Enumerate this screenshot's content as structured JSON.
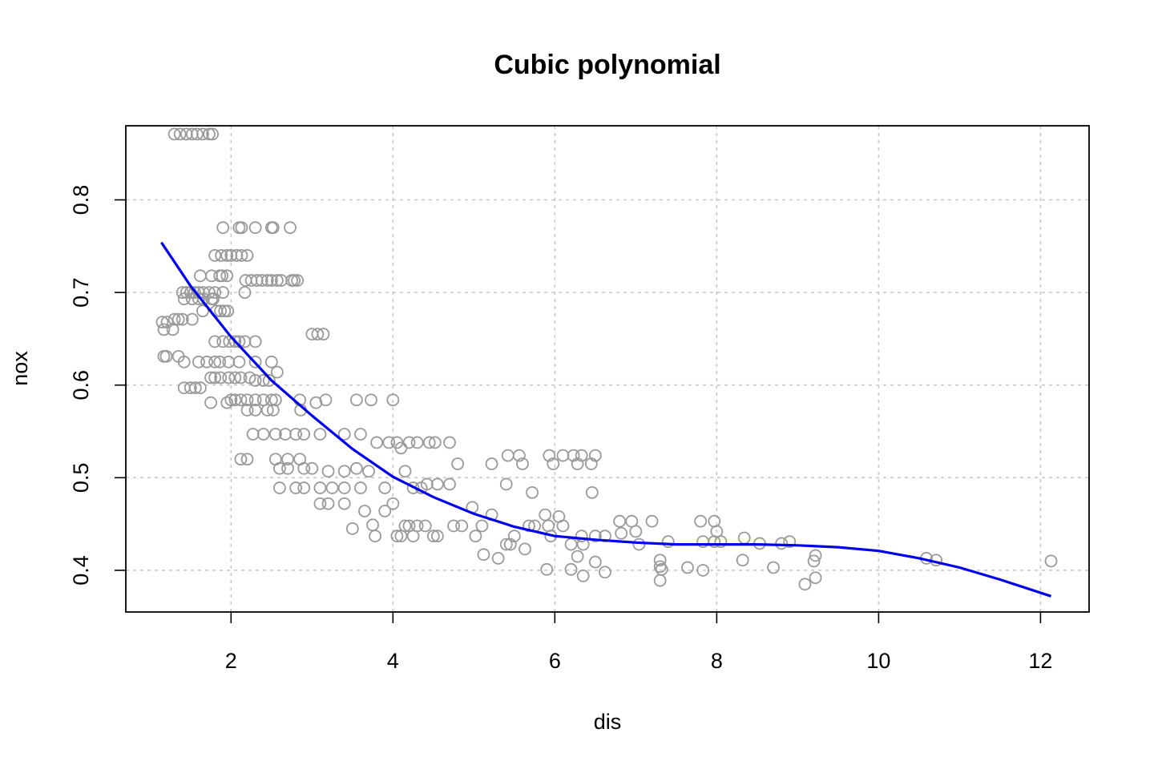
{
  "chart_data": {
    "type": "scatter",
    "title": "Cubic polynomial",
    "xlabel": "dis",
    "ylabel": "nox",
    "xlim": [
      0.7,
      12.6
    ],
    "ylim": [
      0.355,
      0.88
    ],
    "x_ticks": [
      2,
      4,
      6,
      8,
      10,
      12
    ],
    "y_ticks": [
      0.4,
      0.5,
      0.6,
      0.7,
      0.8
    ],
    "x_tick_labels": [
      "2",
      "4",
      "6",
      "8",
      "10",
      "12"
    ],
    "y_tick_labels": [
      "0.4",
      "0.5",
      "0.6",
      "0.7",
      "0.8"
    ],
    "grid": true,
    "colors": {
      "points": "#9a9a9a",
      "fit_line": "#0000ee",
      "grid": "#c8c8c8"
    },
    "points": [
      [
        1.3,
        0.871
      ],
      [
        1.37,
        0.871
      ],
      [
        1.45,
        0.871
      ],
      [
        1.52,
        0.871
      ],
      [
        1.58,
        0.871
      ],
      [
        1.65,
        0.871
      ],
      [
        1.73,
        0.871
      ],
      [
        1.77,
        0.871
      ],
      [
        1.9,
        0.77
      ],
      [
        2.1,
        0.77
      ],
      [
        2.13,
        0.77
      ],
      [
        2.3,
        0.77
      ],
      [
        2.5,
        0.77
      ],
      [
        2.52,
        0.77
      ],
      [
        2.73,
        0.77
      ],
      [
        1.8,
        0.74
      ],
      [
        1.88,
        0.74
      ],
      [
        1.95,
        0.74
      ],
      [
        2.0,
        0.74
      ],
      [
        2.07,
        0.74
      ],
      [
        2.13,
        0.74
      ],
      [
        2.2,
        0.74
      ],
      [
        2.18,
        0.713
      ],
      [
        2.25,
        0.713
      ],
      [
        2.32,
        0.713
      ],
      [
        2.38,
        0.713
      ],
      [
        2.45,
        0.713
      ],
      [
        2.5,
        0.713
      ],
      [
        2.57,
        0.713
      ],
      [
        2.62,
        0.713
      ],
      [
        2.75,
        0.713
      ],
      [
        2.78,
        0.713
      ],
      [
        2.82,
        0.713
      ],
      [
        1.62,
        0.718
      ],
      [
        1.76,
        0.718
      ],
      [
        1.86,
        0.718
      ],
      [
        1.89,
        0.718
      ],
      [
        1.95,
        0.718
      ],
      [
        1.4,
        0.7
      ],
      [
        1.45,
        0.7
      ],
      [
        1.5,
        0.7
      ],
      [
        1.55,
        0.7
      ],
      [
        1.6,
        0.7
      ],
      [
        1.66,
        0.7
      ],
      [
        1.73,
        0.7
      ],
      [
        1.8,
        0.7
      ],
      [
        1.9,
        0.7
      ],
      [
        2.17,
        0.7
      ],
      [
        1.42,
        0.693
      ],
      [
        1.52,
        0.693
      ],
      [
        1.6,
        0.693
      ],
      [
        1.66,
        0.693
      ],
      [
        1.76,
        0.693
      ],
      [
        1.78,
        0.693
      ],
      [
        1.65,
        0.68
      ],
      [
        1.82,
        0.68
      ],
      [
        1.87,
        0.68
      ],
      [
        1.92,
        0.68
      ],
      [
        1.96,
        0.68
      ],
      [
        1.15,
        0.668
      ],
      [
        1.3,
        0.671
      ],
      [
        1.35,
        0.671
      ],
      [
        1.4,
        0.671
      ],
      [
        1.52,
        0.671
      ],
      [
        1.21,
        0.668
      ],
      [
        1.28,
        0.66
      ],
      [
        1.17,
        0.66
      ],
      [
        3.0,
        0.655
      ],
      [
        3.07,
        0.655
      ],
      [
        3.14,
        0.655
      ],
      [
        1.8,
        0.647
      ],
      [
        1.9,
        0.647
      ],
      [
        1.98,
        0.647
      ],
      [
        2.05,
        0.647
      ],
      [
        2.1,
        0.647
      ],
      [
        2.17,
        0.647
      ],
      [
        2.3,
        0.647
      ],
      [
        1.17,
        0.631
      ],
      [
        1.2,
        0.631
      ],
      [
        1.35,
        0.631
      ],
      [
        1.42,
        0.625
      ],
      [
        1.6,
        0.625
      ],
      [
        1.7,
        0.625
      ],
      [
        1.8,
        0.625
      ],
      [
        1.86,
        0.625
      ],
      [
        1.97,
        0.625
      ],
      [
        2.1,
        0.625
      ],
      [
        2.3,
        0.625
      ],
      [
        2.5,
        0.625
      ],
      [
        2.57,
        0.614
      ],
      [
        1.75,
        0.608
      ],
      [
        1.8,
        0.608
      ],
      [
        1.87,
        0.608
      ],
      [
        1.97,
        0.608
      ],
      [
        2.05,
        0.608
      ],
      [
        2.12,
        0.608
      ],
      [
        2.23,
        0.608
      ],
      [
        2.3,
        0.605
      ],
      [
        2.4,
        0.605
      ],
      [
        2.47,
        0.605
      ],
      [
        1.42,
        0.597
      ],
      [
        1.5,
        0.597
      ],
      [
        1.56,
        0.597
      ],
      [
        1.62,
        0.597
      ],
      [
        1.75,
        0.581
      ],
      [
        1.95,
        0.581
      ],
      [
        2.0,
        0.584
      ],
      [
        2.05,
        0.584
      ],
      [
        2.12,
        0.584
      ],
      [
        2.2,
        0.584
      ],
      [
        2.3,
        0.584
      ],
      [
        2.4,
        0.584
      ],
      [
        2.5,
        0.584
      ],
      [
        2.55,
        0.584
      ],
      [
        2.85,
        0.584
      ],
      [
        3.05,
        0.581
      ],
      [
        3.17,
        0.584
      ],
      [
        3.55,
        0.584
      ],
      [
        3.73,
        0.584
      ],
      [
        4.0,
        0.584
      ],
      [
        2.2,
        0.573
      ],
      [
        2.3,
        0.573
      ],
      [
        2.45,
        0.573
      ],
      [
        2.52,
        0.573
      ],
      [
        2.86,
        0.573
      ],
      [
        2.27,
        0.547
      ],
      [
        2.4,
        0.547
      ],
      [
        2.55,
        0.547
      ],
      [
        2.67,
        0.547
      ],
      [
        2.8,
        0.547
      ],
      [
        2.9,
        0.547
      ],
      [
        3.1,
        0.547
      ],
      [
        3.4,
        0.547
      ],
      [
        3.6,
        0.547
      ],
      [
        2.55,
        0.52
      ],
      [
        2.7,
        0.52
      ],
      [
        2.85,
        0.52
      ],
      [
        2.12,
        0.52
      ],
      [
        2.2,
        0.52
      ],
      [
        2.6,
        0.51
      ],
      [
        2.7,
        0.51
      ],
      [
        2.9,
        0.51
      ],
      [
        3.0,
        0.51
      ],
      [
        3.2,
        0.507
      ],
      [
        3.4,
        0.507
      ],
      [
        3.55,
        0.51
      ],
      [
        3.7,
        0.507
      ],
      [
        4.15,
        0.507
      ],
      [
        2.6,
        0.489
      ],
      [
        2.8,
        0.489
      ],
      [
        2.9,
        0.489
      ],
      [
        3.1,
        0.489
      ],
      [
        3.25,
        0.489
      ],
      [
        3.4,
        0.489
      ],
      [
        3.6,
        0.489
      ],
      [
        3.9,
        0.489
      ],
      [
        4.25,
        0.489
      ],
      [
        4.35,
        0.489
      ],
      [
        3.1,
        0.472
      ],
      [
        3.2,
        0.472
      ],
      [
        3.4,
        0.472
      ],
      [
        3.5,
        0.445
      ],
      [
        3.65,
        0.464
      ],
      [
        3.75,
        0.449
      ],
      [
        3.78,
        0.437
      ],
      [
        3.9,
        0.464
      ],
      [
        4.0,
        0.472
      ],
      [
        4.05,
        0.437
      ],
      [
        4.1,
        0.437
      ],
      [
        4.15,
        0.448
      ],
      [
        4.2,
        0.448
      ],
      [
        4.25,
        0.437
      ],
      [
        4.3,
        0.448
      ],
      [
        4.4,
        0.448
      ],
      [
        4.5,
        0.437
      ],
      [
        4.55,
        0.437
      ],
      [
        3.8,
        0.538
      ],
      [
        3.95,
        0.538
      ],
      [
        4.05,
        0.538
      ],
      [
        4.1,
        0.532
      ],
      [
        4.2,
        0.538
      ],
      [
        4.3,
        0.538
      ],
      [
        4.45,
        0.538
      ],
      [
        4.52,
        0.538
      ],
      [
        4.7,
        0.538
      ],
      [
        4.8,
        0.515
      ],
      [
        4.42,
        0.493
      ],
      [
        4.55,
        0.493
      ],
      [
        4.7,
        0.493
      ],
      [
        4.75,
        0.448
      ],
      [
        4.85,
        0.448
      ],
      [
        4.98,
        0.468
      ],
      [
        5.02,
        0.437
      ],
      [
        5.1,
        0.448
      ],
      [
        5.12,
        0.417
      ],
      [
        5.22,
        0.46
      ],
      [
        5.3,
        0.413
      ],
      [
        5.4,
        0.428
      ],
      [
        5.45,
        0.428
      ],
      [
        5.5,
        0.437
      ],
      [
        5.68,
        0.448
      ],
      [
        5.75,
        0.448
      ],
      [
        5.88,
        0.46
      ],
      [
        5.92,
        0.448
      ],
      [
        5.95,
        0.437
      ],
      [
        5.22,
        0.515
      ],
      [
        5.4,
        0.493
      ],
      [
        5.42,
        0.524
      ],
      [
        5.56,
        0.524
      ],
      [
        5.6,
        0.515
      ],
      [
        5.72,
        0.484
      ],
      [
        5.63,
        0.423
      ],
      [
        5.93,
        0.524
      ],
      [
        5.98,
        0.515
      ],
      [
        6.1,
        0.524
      ],
      [
        6.23,
        0.524
      ],
      [
        6.28,
        0.515
      ],
      [
        6.33,
        0.524
      ],
      [
        6.45,
        0.515
      ],
      [
        6.5,
        0.524
      ],
      [
        6.46,
        0.484
      ],
      [
        6.05,
        0.458
      ],
      [
        6.1,
        0.448
      ],
      [
        6.2,
        0.428
      ],
      [
        6.28,
        0.415
      ],
      [
        6.33,
        0.437
      ],
      [
        6.35,
        0.428
      ],
      [
        6.5,
        0.437
      ],
      [
        6.62,
        0.437
      ],
      [
        6.2,
        0.401
      ],
      [
        6.35,
        0.394
      ],
      [
        6.5,
        0.409
      ],
      [
        6.62,
        0.398
      ],
      [
        5.9,
        0.401
      ],
      [
        6.8,
        0.453
      ],
      [
        6.95,
        0.453
      ],
      [
        7.0,
        0.442
      ],
      [
        7.04,
        0.428
      ],
      [
        6.82,
        0.44
      ],
      [
        7.2,
        0.453
      ],
      [
        7.4,
        0.431
      ],
      [
        7.3,
        0.411
      ],
      [
        7.3,
        0.404
      ],
      [
        7.32,
        0.401
      ],
      [
        7.3,
        0.389
      ],
      [
        7.64,
        0.403
      ],
      [
        7.83,
        0.4
      ],
      [
        7.8,
        0.453
      ],
      [
        7.97,
        0.453
      ],
      [
        8.0,
        0.442
      ],
      [
        7.83,
        0.431
      ],
      [
        7.97,
        0.431
      ],
      [
        8.05,
        0.431
      ],
      [
        8.34,
        0.435
      ],
      [
        8.53,
        0.429
      ],
      [
        8.8,
        0.429
      ],
      [
        8.9,
        0.431
      ],
      [
        8.32,
        0.411
      ],
      [
        8.7,
        0.403
      ],
      [
        9.09,
        0.385
      ],
      [
        9.2,
        0.41
      ],
      [
        9.22,
        0.416
      ],
      [
        9.22,
        0.392
      ],
      [
        10.59,
        0.413
      ],
      [
        10.71,
        0.411
      ],
      [
        12.13,
        0.41
      ]
    ],
    "fit": {
      "name": "",
      "x": [
        1.14,
        1.5,
        2.0,
        2.5,
        3.0,
        3.5,
        4.0,
        4.5,
        5.0,
        5.5,
        6.0,
        6.5,
        7.0,
        7.5,
        8.0,
        8.5,
        9.0,
        9.5,
        10.0,
        10.5,
        11.0,
        11.5,
        12.13
      ],
      "y": [
        0.754,
        0.707,
        0.652,
        0.605,
        0.567,
        0.531,
        0.501,
        0.479,
        0.461,
        0.447,
        0.437,
        0.433,
        0.43,
        0.428,
        0.428,
        0.428,
        0.427,
        0.425,
        0.421,
        0.413,
        0.403,
        0.39,
        0.372
      ]
    }
  }
}
